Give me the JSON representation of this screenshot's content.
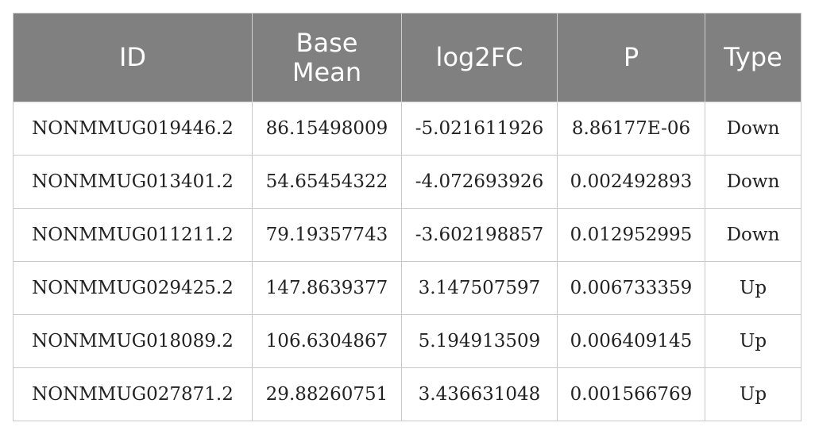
{
  "table": {
    "headers": {
      "id": "ID",
      "base_mean_line1": "Base",
      "base_mean_line2": "Mean",
      "log2fc": "log2FC",
      "p": "P",
      "type": "Type"
    },
    "rows": [
      {
        "id": "NONMMUG019446.2",
        "base_mean": "86.15498009",
        "log2fc": "-5.021611926",
        "p": "8.86177E-06",
        "type": "Down"
      },
      {
        "id": "NONMMUG013401.2",
        "base_mean": "54.65454322",
        "log2fc": "-4.072693926",
        "p": "0.002492893",
        "type": "Down"
      },
      {
        "id": "NONMMUG011211.2",
        "base_mean": "79.19357743",
        "log2fc": "-3.602198857",
        "p": "0.012952995",
        "type": "Down"
      },
      {
        "id": "NONMMUG029425.2",
        "base_mean": "147.8639377",
        "log2fc": "3.147507597",
        "p": "0.006733359",
        "type": "Up"
      },
      {
        "id": "NONMMUG018089.2",
        "base_mean": "106.6304867",
        "log2fc": "5.194913509",
        "p": "0.006409145",
        "type": "Up"
      },
      {
        "id": "NONMMUG027871.2",
        "base_mean": "29.88260751",
        "log2fc": "3.436631048",
        "p": "0.001566769",
        "type": "Up"
      }
    ]
  },
  "colors": {
    "header_background": "#808080",
    "header_text": "#ffffff",
    "body_text": "#222222",
    "grid_lines": "#c8c8c8"
  }
}
